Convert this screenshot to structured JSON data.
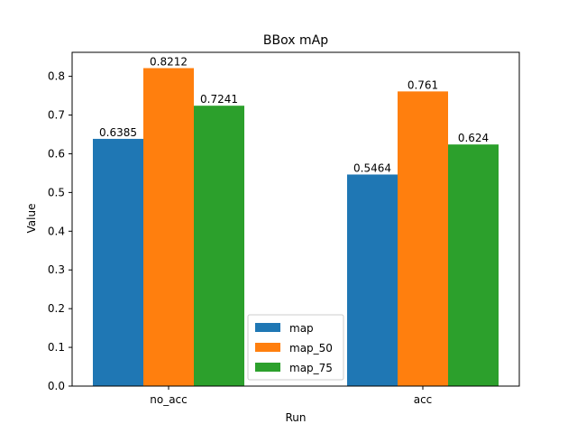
{
  "chart_data": {
    "type": "bar",
    "title": "BBox mAp",
    "xlabel": "Run",
    "ylabel": "Value",
    "categories": [
      "no_acc",
      "acc"
    ],
    "series": [
      {
        "name": "map",
        "values": [
          0.6385,
          0.5464
        ],
        "labels": [
          "0.6385",
          "0.5464"
        ],
        "color": "#1f77b4"
      },
      {
        "name": "map_50",
        "values": [
          0.8212,
          0.761
        ],
        "labels": [
          "0.8212",
          "0.761"
        ],
        "color": "#ff7f0e"
      },
      {
        "name": "map_75",
        "values": [
          0.7241,
          0.624
        ],
        "labels": [
          "0.7241",
          "0.624"
        ],
        "color": "#2ca02c"
      }
    ],
    "ylim": [
      0,
      0.862
    ],
    "yticks": [
      0.0,
      0.1,
      0.2,
      0.3,
      0.4,
      0.5,
      0.6,
      0.7,
      0.8
    ],
    "ytick_labels": [
      "0.0",
      "0.1",
      "0.2",
      "0.3",
      "0.4",
      "0.5",
      "0.6",
      "0.7",
      "0.8"
    ],
    "grid": false,
    "legend_position": "bottom-center"
  }
}
